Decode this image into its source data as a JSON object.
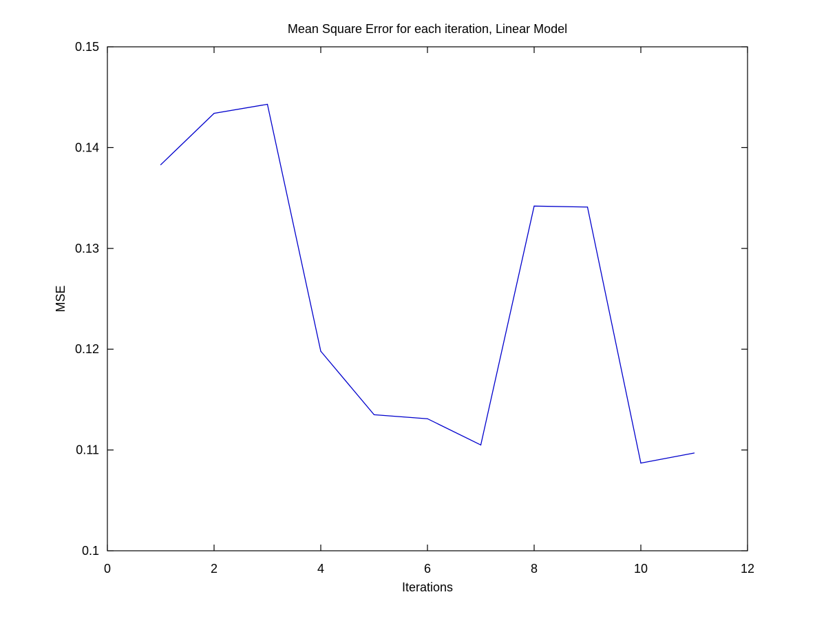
{
  "chart_data": {
    "type": "line",
    "title": "Mean Square Error for each iteration, Linear Model",
    "xlabel": "Iterations",
    "ylabel": "MSE",
    "xlim": [
      0,
      12
    ],
    "ylim": [
      0.1,
      0.15
    ],
    "xticks": [
      0,
      2,
      4,
      6,
      8,
      10,
      12
    ],
    "xtick_labels": [
      "0",
      "2",
      "4",
      "6",
      "8",
      "10",
      "12"
    ],
    "yticks": [
      0.1,
      0.11,
      0.12,
      0.13,
      0.14,
      0.15
    ],
    "ytick_labels": [
      "0.1",
      "0.11",
      "0.12",
      "0.13",
      "0.14",
      "0.15"
    ],
    "grid": false,
    "series": [
      {
        "color": "#0000cc",
        "x": [
          1,
          2,
          3,
          4,
          5,
          6,
          7,
          8,
          9,
          10,
          11
        ],
        "y": [
          0.1383,
          0.1434,
          0.1443,
          0.1198,
          0.1135,
          0.1131,
          0.1105,
          0.1342,
          0.1341,
          0.1087,
          0.1097
        ]
      }
    ]
  }
}
